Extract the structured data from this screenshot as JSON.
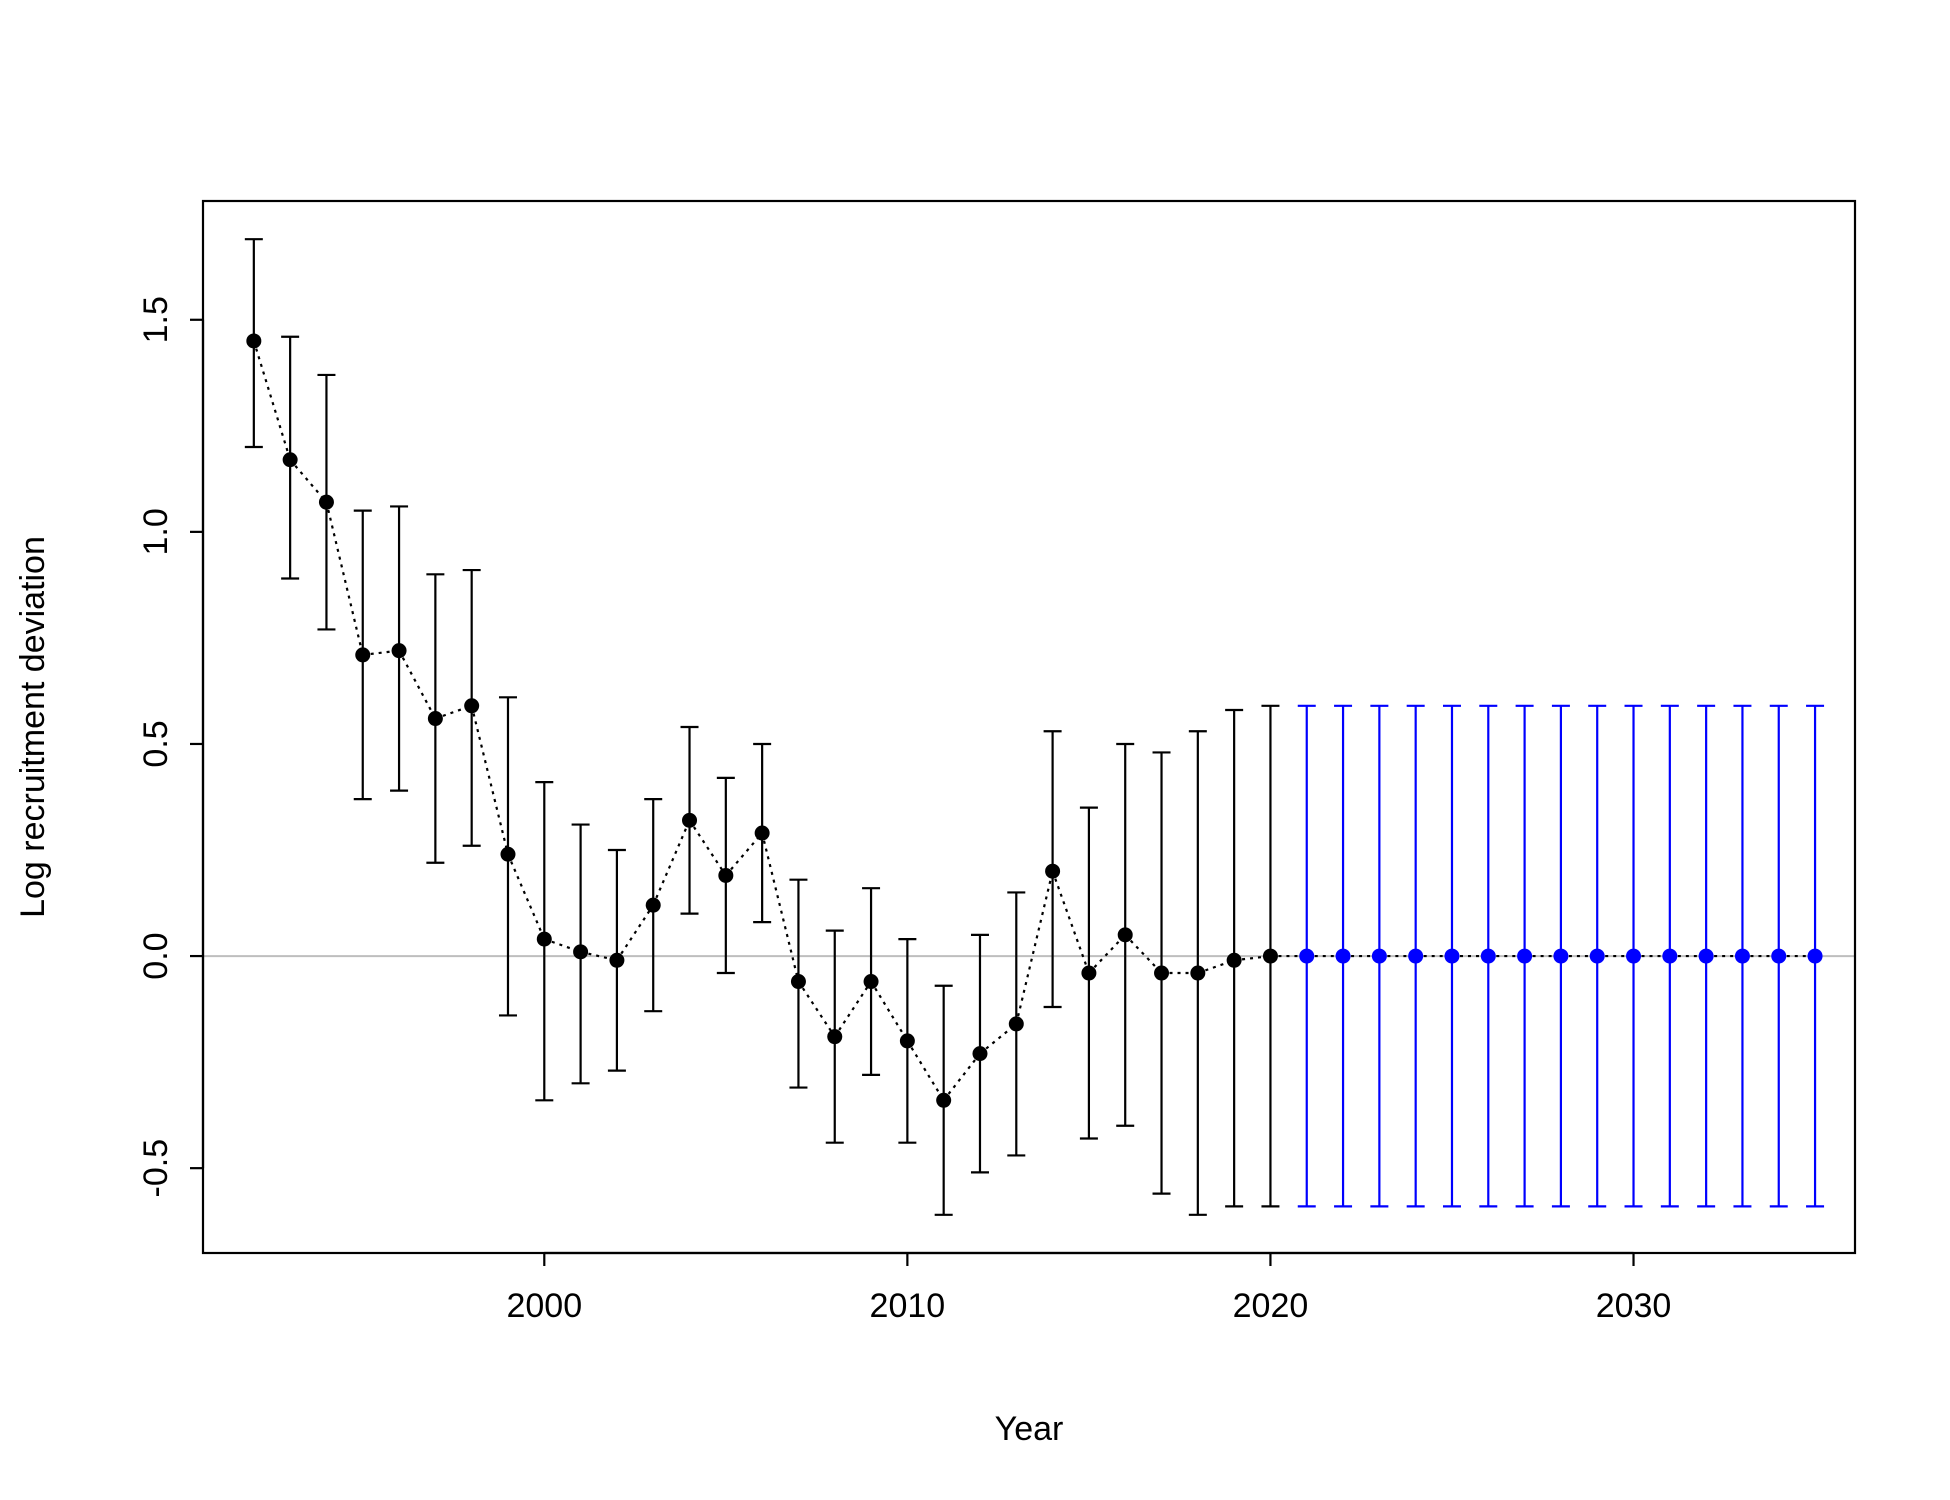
{
  "chart_data": {
    "type": "scatter",
    "title": "",
    "xlabel": "Year",
    "ylabel": "Log recruitment deviation",
    "xlim": [
      1990.6,
      2036.1
    ],
    "ylim": [
      -0.7,
      1.78
    ],
    "x_ticks": [
      2000,
      2010,
      2020,
      2030
    ],
    "y_ticks": [
      -0.5,
      0.0,
      0.5,
      1.0,
      1.5
    ],
    "x_tick_labels": [
      "2000",
      "2010",
      "2020",
      "2030"
    ],
    "y_tick_labels": [
      "-0.5",
      "0.0",
      "0.5",
      "1.0",
      "1.5"
    ],
    "reference_line": {
      "y": 0,
      "color": "#bebebe"
    },
    "grid": false,
    "series": [
      {
        "color": "#000000",
        "line_style": "dotted",
        "points": [
          {
            "x": 1992,
            "y": 1.45,
            "lo": 1.2,
            "hi": 1.69
          },
          {
            "x": 1993,
            "y": 1.17,
            "lo": 0.89,
            "hi": 1.46
          },
          {
            "x": 1994,
            "y": 1.07,
            "lo": 0.77,
            "hi": 1.37
          },
          {
            "x": 1995,
            "y": 0.71,
            "lo": 0.37,
            "hi": 1.05
          },
          {
            "x": 1996,
            "y": 0.72,
            "lo": 0.39,
            "hi": 1.06
          },
          {
            "x": 1997,
            "y": 0.56,
            "lo": 0.22,
            "hi": 0.9
          },
          {
            "x": 1998,
            "y": 0.59,
            "lo": 0.26,
            "hi": 0.91
          },
          {
            "x": 1999,
            "y": 0.24,
            "lo": -0.14,
            "hi": 0.61
          },
          {
            "x": 2000,
            "y": 0.04,
            "lo": -0.34,
            "hi": 0.41
          },
          {
            "x": 2001,
            "y": 0.01,
            "lo": -0.3,
            "hi": 0.31
          },
          {
            "x": 2002,
            "y": -0.01,
            "lo": -0.27,
            "hi": 0.25
          },
          {
            "x": 2003,
            "y": 0.12,
            "lo": -0.13,
            "hi": 0.37
          },
          {
            "x": 2004,
            "y": 0.32,
            "lo": 0.1,
            "hi": 0.54
          },
          {
            "x": 2005,
            "y": 0.19,
            "lo": -0.04,
            "hi": 0.42
          },
          {
            "x": 2006,
            "y": 0.29,
            "lo": 0.08,
            "hi": 0.5
          },
          {
            "x": 2007,
            "y": -0.06,
            "lo": -0.31,
            "hi": 0.18
          },
          {
            "x": 2008,
            "y": -0.19,
            "lo": -0.44,
            "hi": 0.06
          },
          {
            "x": 2009,
            "y": -0.06,
            "lo": -0.28,
            "hi": 0.16
          },
          {
            "x": 2010,
            "y": -0.2,
            "lo": -0.44,
            "hi": 0.04
          },
          {
            "x": 2011,
            "y": -0.34,
            "lo": -0.61,
            "hi": -0.07
          },
          {
            "x": 2012,
            "y": -0.23,
            "lo": -0.51,
            "hi": 0.05
          },
          {
            "x": 2013,
            "y": -0.16,
            "lo": -0.47,
            "hi": 0.15
          },
          {
            "x": 2014,
            "y": 0.2,
            "lo": -0.12,
            "hi": 0.53
          },
          {
            "x": 2015,
            "y": -0.04,
            "lo": -0.43,
            "hi": 0.35
          },
          {
            "x": 2016,
            "y": 0.05,
            "lo": -0.4,
            "hi": 0.5
          },
          {
            "x": 2017,
            "y": -0.04,
            "lo": -0.56,
            "hi": 0.48
          },
          {
            "x": 2018,
            "y": -0.04,
            "lo": -0.61,
            "hi": 0.53
          },
          {
            "x": 2019,
            "y": -0.01,
            "lo": -0.59,
            "hi": 0.58
          },
          {
            "x": 2020,
            "y": 0.0,
            "lo": -0.59,
            "hi": 0.59
          }
        ]
      },
      {
        "color": "#0000ff",
        "line_style": "dotted",
        "points": [
          {
            "x": 2021,
            "y": 0.0,
            "lo": -0.59,
            "hi": 0.59
          },
          {
            "x": 2022,
            "y": 0.0,
            "lo": -0.59,
            "hi": 0.59
          },
          {
            "x": 2023,
            "y": 0.0,
            "lo": -0.59,
            "hi": 0.59
          },
          {
            "x": 2024,
            "y": 0.0,
            "lo": -0.59,
            "hi": 0.59
          },
          {
            "x": 2025,
            "y": 0.0,
            "lo": -0.59,
            "hi": 0.59
          },
          {
            "x": 2026,
            "y": 0.0,
            "lo": -0.59,
            "hi": 0.59
          },
          {
            "x": 2027,
            "y": 0.0,
            "lo": -0.59,
            "hi": 0.59
          },
          {
            "x": 2028,
            "y": 0.0,
            "lo": -0.59,
            "hi": 0.59
          },
          {
            "x": 2029,
            "y": 0.0,
            "lo": -0.59,
            "hi": 0.59
          },
          {
            "x": 2030,
            "y": 0.0,
            "lo": -0.59,
            "hi": 0.59
          },
          {
            "x": 2031,
            "y": 0.0,
            "lo": -0.59,
            "hi": 0.59
          },
          {
            "x": 2032,
            "y": 0.0,
            "lo": -0.59,
            "hi": 0.59
          },
          {
            "x": 2033,
            "y": 0.0,
            "lo": -0.59,
            "hi": 0.59
          },
          {
            "x": 2034,
            "y": 0.0,
            "lo": -0.59,
            "hi": 0.59
          },
          {
            "x": 2035,
            "y": 0.0,
            "lo": -0.59,
            "hi": 0.59
          }
        ]
      }
    ]
  }
}
